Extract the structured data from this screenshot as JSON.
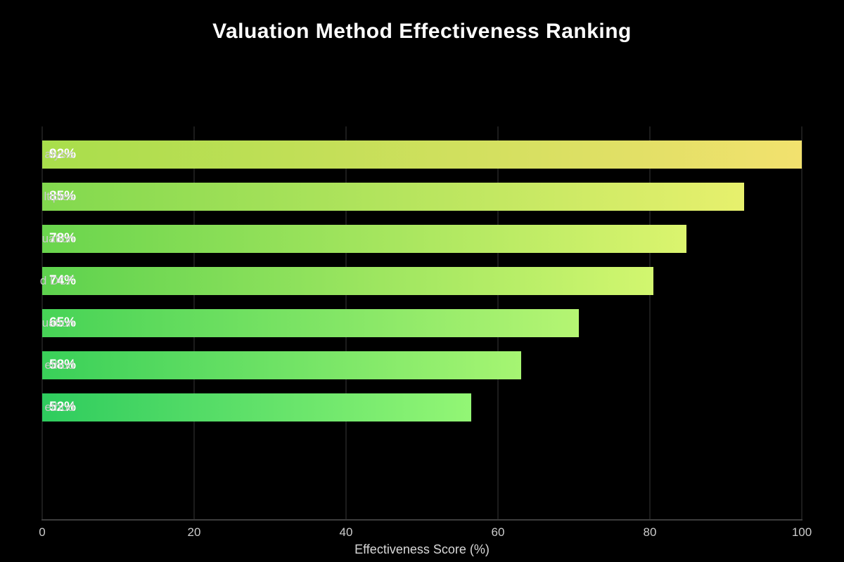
{
  "colors": {
    "background": "#000000",
    "title": "#ffffff",
    "tick_label": "#cccccc",
    "axis_label": "#d9d9d9",
    "y_label": "#cccccc",
    "value_label": "#ffffff",
    "gridline": "#1c1c1c",
    "axis_line": "#3c3c3c"
  },
  "chart_data": {
    "type": "bar",
    "orientation": "horizontal",
    "title": "Valuation Method Effectiveness Ranking",
    "xlabel": "Effectiveness Score (%)",
    "categories": [
      "alysis",
      "ltiples",
      "uation",
      "d DCF",
      "uation",
      "ethod",
      "ethod"
    ],
    "values": [
      92,
      85,
      78,
      74,
      65,
      58,
      52
    ],
    "value_labels": [
      "92%",
      "85%",
      "78%",
      "74%",
      "65%",
      "58%",
      "52%"
    ],
    "xlim": [
      0,
      100
    ],
    "x_ticks": [
      "0",
      "20",
      "40",
      "60",
      "80",
      "100"
    ],
    "x_tick_values": [
      0,
      20,
      40,
      60,
      80,
      100
    ],
    "bars_scaled_so_max_fills_axis": true,
    "bar_lengths_axis_units": [
      100,
      92.4,
      84.8,
      80.4,
      70.7,
      63.0,
      56.5
    ],
    "grid": "vertical gridlines at each x tick, behind bars",
    "legend": "none",
    "bar_gradients": [
      {
        "start": "#a8de4b",
        "end": "#f2e16e"
      },
      {
        "start": "#81d94e",
        "end": "#e7f06d"
      },
      {
        "start": "#69d54d",
        "end": "#dbf46e"
      },
      {
        "start": "#5dd24e",
        "end": "#d2f66f"
      },
      {
        "start": "#46d356",
        "end": "#b5f573"
      },
      {
        "start": "#39d059",
        "end": "#a6f572"
      },
      {
        "start": "#2ecc5e",
        "end": "#93f675"
      }
    ]
  }
}
